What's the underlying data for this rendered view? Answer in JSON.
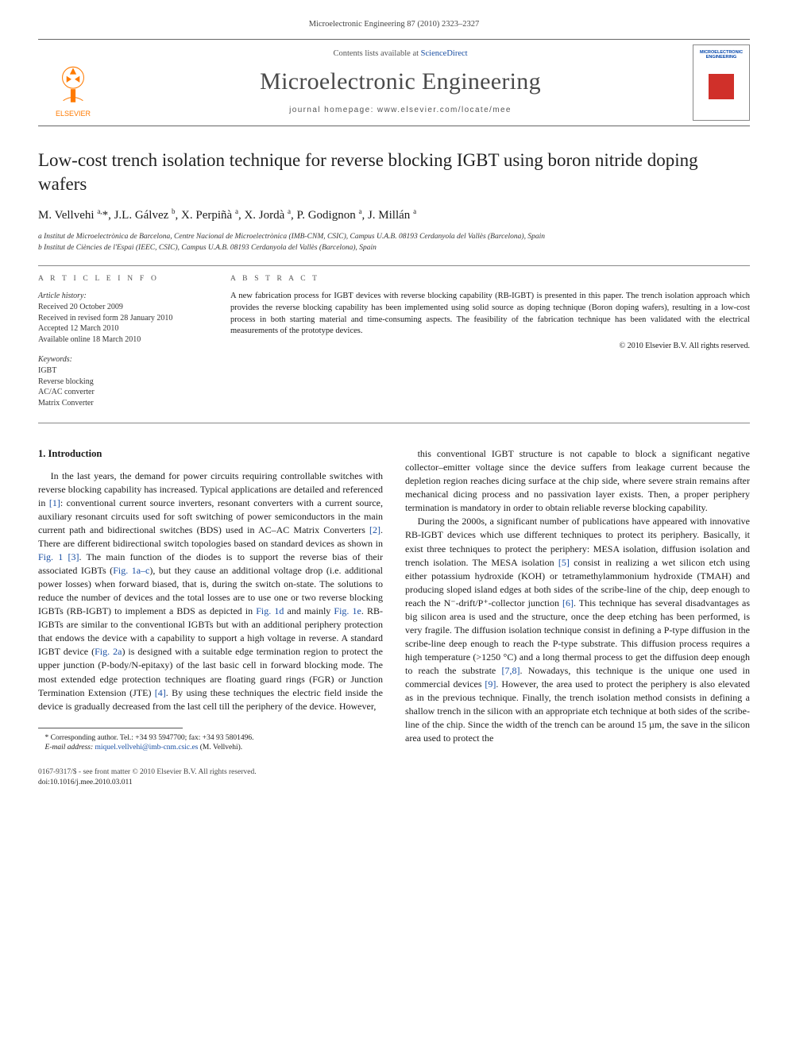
{
  "topline": "Microelectronic Engineering 87 (2010) 2323–2327",
  "banner": {
    "contents_prefix": "Contents lists available at ",
    "contents_link": "ScienceDirect",
    "journal": "Microelectronic Engineering",
    "homepage_label": "journal homepage: www.elsevier.com/locate/mee",
    "publisher_logo_text": "ELSEVIER",
    "cover_title": "MICROELECTRONIC ENGINEERING",
    "logo_fill": "#ff7a00",
    "cover_graphic_color": "#d0302a"
  },
  "title": "Low-cost trench isolation technique for reverse blocking IGBT using boron nitride doping wafers",
  "authors_html": "M. Vellvehi <sup>a,</sup>*, J.L. Gálvez <sup>b</sup>, X. Perpiñà <sup>a</sup>, X. Jordà <sup>a</sup>, P. Godignon <sup>a</sup>, J. Millán <sup>a</sup>",
  "affiliations": [
    "a Institut de Microelectrònica de Barcelona, Centre Nacional de Microelectrònica (IMB-CNM, CSIC), Campus U.A.B. 08193 Cerdanyola del Vallès (Barcelona), Spain",
    "b Institut de Ciències de l'Espai (IEEC, CSIC), Campus U.A.B. 08193 Cerdanyola del Vallès (Barcelona), Spain"
  ],
  "article_info_head": "A R T I C L E   I N F O",
  "abstract_head": "A B S T R A C T",
  "history": {
    "head": "Article history:",
    "lines": [
      "Received 20 October 2009",
      "Received in revised form 28 January 2010",
      "Accepted 12 March 2010",
      "Available online 18 March 2010"
    ]
  },
  "keywords": {
    "head": "Keywords:",
    "lines": [
      "IGBT",
      "Reverse blocking",
      "AC/AC converter",
      "Matrix Converter"
    ]
  },
  "abstract_body": "A new fabrication process for IGBT devices with reverse blocking capability (RB-IGBT) is presented in this paper. The trench isolation approach which provides the reverse blocking capability has been implemented using solid source as doping technique (Boron doping wafers), resulting in a low-cost process in both starting material and time-consuming aspects. The feasibility of the fabrication technique has been validated with the electrical measurements of the prototype devices.",
  "copyright": "© 2010 Elsevier B.V. All rights reserved.",
  "section1_head": "1. Introduction",
  "col_left_para": "In the last years, the demand for power circuits requiring controllable switches with reverse blocking capability has increased. Typical applications are detailed and referenced in [1]: conventional current source inverters, resonant converters with a current source, auxiliary resonant circuits used for soft switching of power semiconductors in the main current path and bidirectional switches (BDS) used in AC–AC Matrix Converters [2]. There are different bidirectional switch topologies based on standard devices as shown in Fig. 1 [3]. The main function of the diodes is to support the reverse bias of their associated IGBTs (Fig. 1a–c), but they cause an additional voltage drop (i.e. additional power losses) when forward biased, that is, during the switch on-state. The solutions to reduce the number of devices and the total losses are to use one or two reverse blocking IGBTs (RB-IGBT) to implement a BDS as depicted in Fig. 1d and mainly Fig. 1e. RB-IGBTs are similar to the conventional IGBTs but with an additional periphery protection that endows the device with a capability to support a high voltage in reverse. A standard IGBT device (Fig. 2a) is designed with a suitable edge termination region to protect the upper junction (P-body/N-epitaxy) of the last basic cell in forward blocking mode. The most extended edge protection techniques are floating guard rings (FGR) or Junction Termination Extension (JTE) [4]. By using these techniques the electric field inside the device is gradually decreased from the last cell till the periphery of the device. However,",
  "col_right_p1": "this conventional IGBT structure is not capable to block a significant negative collector–emitter voltage since the device suffers from leakage current because the depletion region reaches dicing surface at the chip side, where severe strain remains after mechanical dicing process and no passivation layer exists. Then, a proper periphery termination is mandatory in order to obtain reliable reverse blocking capability.",
  "col_right_p2": "During the 2000s, a significant number of publications have appeared with innovative RB-IGBT devices which use different techniques to protect its periphery. Basically, it exist three techniques to protect the periphery: MESA isolation, diffusion isolation and trench isolation. The MESA isolation [5] consist in realizing a wet silicon etch using either potassium hydroxide (KOH) or tetramethylammonium hydroxide (TMAH) and producing sloped island edges at both sides of the scribe-line of the chip, deep enough to reach the N⁻-drift/P⁺-collector junction [6]. This technique has several disadvantages as big silicon area is used and the structure, once the deep etching has been performed, is very fragile. The diffusion isolation technique consist in defining a P-type diffusion in the scribe-line deep enough to reach the P-type substrate. This diffusion process requires a high temperature (>1250 °C) and a long thermal process to get the diffusion deep enough to reach the substrate [7,8]. Nowadays, this technique is the unique one used in commercial devices [9]. However, the area used to protect the periphery is also elevated as in the previous technique. Finally, the trench isolation method consists in defining a shallow trench in the silicon with an appropriate etch technique at both sides of the scribe-line of the chip. Since the width of the trench can be around 15 µm, the save in the silicon area used to protect the",
  "footnote": {
    "corr": "* Corresponding author. Tel.: +34 93 5947700; fax: +34 93 5801496.",
    "email_label": "E-mail address: ",
    "email": "miquel.vellvehi@imb-cnm.csic.es",
    "email_tail": " (M. Vellvehi)."
  },
  "bottom": {
    "line1": "0167-9317/$ - see front matter © 2010 Elsevier B.V. All rights reserved.",
    "line2": "doi:10.1016/j.mee.2010.03.011"
  },
  "colors": {
    "link": "#1a4fa3",
    "text": "#1a1a1a",
    "rule": "#888888"
  }
}
